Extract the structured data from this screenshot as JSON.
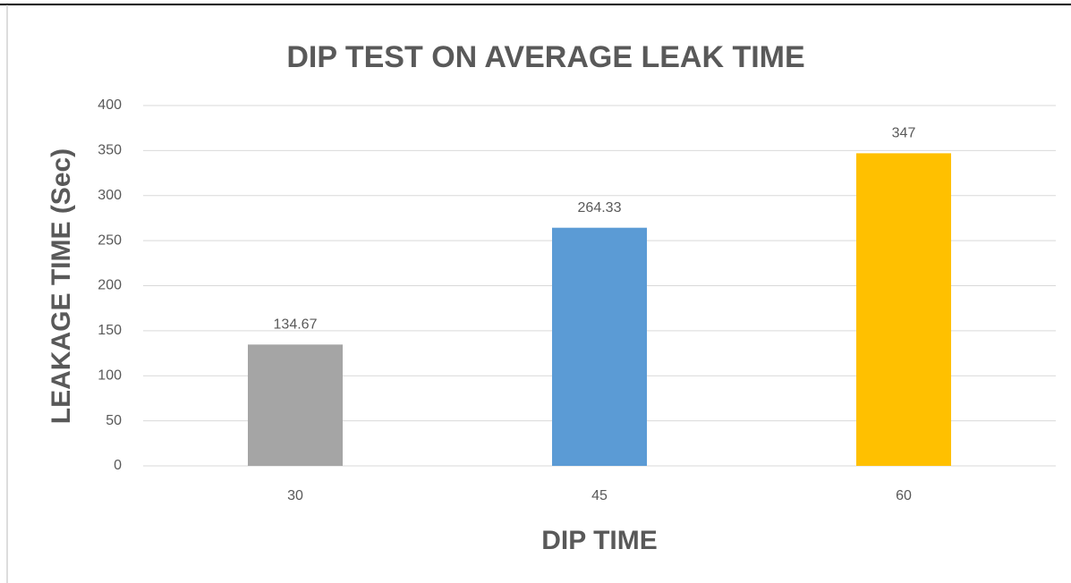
{
  "chart_data": {
    "type": "bar",
    "title": "DIP TEST ON AVERAGE LEAK TIME",
    "x_label": "DIP TIME",
    "y_label": "LEAKAGE TIME  (Sec)",
    "categories": [
      "30",
      "45",
      "60"
    ],
    "values": [
      134.67,
      264.33,
      347
    ],
    "colors": [
      "#a5a5a5",
      "#5b9bd5",
      "#ffc000"
    ],
    "ylim": [
      0,
      400
    ],
    "yticks": [
      0,
      50,
      100,
      150,
      200,
      250,
      300,
      350,
      400
    ],
    "grid": true
  }
}
